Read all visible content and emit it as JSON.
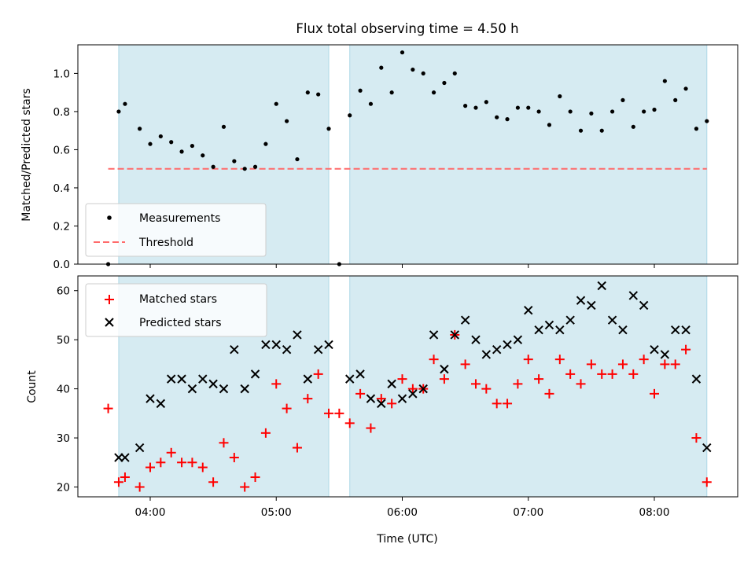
{
  "chart_data": [
    {
      "type": "scatter",
      "title": "Flux total observing time = 4.50 h",
      "xlabel": "",
      "ylabel": "Matched/Predicted stars",
      "ylim": [
        0,
        1.15
      ],
      "yticks": [
        "0.0",
        "0.2",
        "0.4",
        "0.6",
        "0.8",
        "1.0"
      ],
      "grid": false,
      "legend_position": "lower-left",
      "shaded_intervals_utc": [
        [
          "03:45",
          "05:25"
        ],
        [
          "05:35",
          "08:25"
        ]
      ],
      "shade_color": "#add8e6",
      "threshold": {
        "name": "Threshold",
        "value": 0.5,
        "x_range": [
          "03:40",
          "08:25"
        ],
        "color": "#ff6b6b",
        "style": "dashed"
      },
      "series": [
        {
          "name": "Measurements",
          "marker": "dot",
          "color": "#000000",
          "x": [
            "03:40",
            "03:45",
            "03:48",
            "03:55",
            "04:00",
            "04:05",
            "04:10",
            "04:15",
            "04:20",
            "04:25",
            "04:30",
            "04:35",
            "04:40",
            "04:45",
            "04:50",
            "04:55",
            "05:00",
            "05:05",
            "05:10",
            "05:15",
            "05:20",
            "05:25",
            "05:30",
            "05:35",
            "05:40",
            "05:45",
            "05:50",
            "05:55",
            "06:00",
            "06:05",
            "06:10",
            "06:15",
            "06:20",
            "06:25",
            "06:30",
            "06:35",
            "06:40",
            "06:45",
            "06:50",
            "06:55",
            "07:00",
            "07:05",
            "07:10",
            "07:15",
            "07:20",
            "07:25",
            "07:30",
            "07:35",
            "07:40",
            "07:45",
            "07:50",
            "07:55",
            "08:00",
            "08:05",
            "08:10",
            "08:15",
            "08:20",
            "08:25"
          ],
          "values": [
            0.0,
            0.8,
            0.84,
            0.71,
            0.63,
            0.67,
            0.64,
            0.59,
            0.62,
            0.57,
            0.51,
            0.72,
            0.54,
            0.5,
            0.51,
            0.63,
            0.84,
            0.75,
            0.55,
            0.9,
            0.89,
            0.71,
            0.0,
            0.78,
            0.91,
            0.84,
            1.03,
            0.9,
            1.11,
            1.02,
            1.0,
            0.9,
            0.95,
            1.0,
            0.83,
            0.82,
            0.85,
            0.77,
            0.76,
            0.82,
            0.82,
            0.8,
            0.73,
            0.88,
            0.8,
            0.7,
            0.79,
            0.7,
            0.8,
            0.86,
            0.72,
            0.8,
            0.81,
            0.96,
            0.86,
            0.92,
            0.71,
            0.75
          ]
        }
      ]
    },
    {
      "type": "scatter",
      "title": "",
      "xlabel": "Time (UTC)",
      "ylabel": "Count",
      "ylim": [
        18,
        63
      ],
      "yticks": [
        "20",
        "30",
        "40",
        "50",
        "60"
      ],
      "xticks": [
        "04:00",
        "05:00",
        "06:00",
        "07:00",
        "08:00"
      ],
      "grid": false,
      "legend_position": "top-left",
      "shaded_intervals_utc": [
        [
          "03:45",
          "05:25"
        ],
        [
          "05:35",
          "08:25"
        ]
      ],
      "series": [
        {
          "name": "Matched stars",
          "marker": "plus",
          "color": "#ff0000",
          "x": [
            "03:40",
            "03:45",
            "03:48",
            "03:55",
            "04:00",
            "04:05",
            "04:10",
            "04:15",
            "04:20",
            "04:25",
            "04:30",
            "04:35",
            "04:40",
            "04:45",
            "04:50",
            "04:55",
            "05:00",
            "05:05",
            "05:10",
            "05:15",
            "05:20",
            "05:25",
            "05:30",
            "05:35",
            "05:40",
            "05:45",
            "05:50",
            "05:55",
            "06:00",
            "06:05",
            "06:10",
            "06:15",
            "06:20",
            "06:25",
            "06:30",
            "06:35",
            "06:40",
            "06:45",
            "06:50",
            "06:55",
            "07:00",
            "07:05",
            "07:10",
            "07:15",
            "07:20",
            "07:25",
            "07:30",
            "07:35",
            "07:40",
            "07:45",
            "07:50",
            "07:55",
            "08:00",
            "08:05",
            "08:10",
            "08:15",
            "08:20",
            "08:25"
          ],
          "values": [
            36,
            21,
            22,
            20,
            24,
            25,
            27,
            25,
            25,
            24,
            21,
            29,
            26,
            20,
            22,
            31,
            41,
            36,
            28,
            38,
            43,
            35,
            35,
            33,
            39,
            32,
            38,
            37,
            42,
            40,
            40,
            46,
            42,
            51,
            45,
            41,
            40,
            37,
            37,
            41,
            46,
            42,
            39,
            46,
            43,
            41,
            45,
            43,
            43,
            45,
            43,
            46,
            39,
            45,
            45,
            48,
            30,
            21
          ]
        },
        {
          "name": "Predicted stars",
          "marker": "x",
          "color": "#000000",
          "x": [
            "03:45",
            "03:48",
            "03:55",
            "04:00",
            "04:05",
            "04:10",
            "04:15",
            "04:20",
            "04:25",
            "04:30",
            "04:35",
            "04:40",
            "04:45",
            "04:50",
            "04:55",
            "05:00",
            "05:05",
            "05:10",
            "05:15",
            "05:20",
            "05:25",
            "05:35",
            "05:40",
            "05:45",
            "05:50",
            "05:55",
            "06:00",
            "06:05",
            "06:10",
            "06:15",
            "06:20",
            "06:25",
            "06:30",
            "06:35",
            "06:40",
            "06:45",
            "06:50",
            "06:55",
            "07:00",
            "07:05",
            "07:10",
            "07:15",
            "07:20",
            "07:25",
            "07:30",
            "07:35",
            "07:40",
            "07:45",
            "07:50",
            "07:55",
            "08:00",
            "08:05",
            "08:10",
            "08:15",
            "08:20",
            "08:25"
          ],
          "values": [
            26,
            26,
            28,
            38,
            37,
            42,
            42,
            40,
            42,
            41,
            40,
            48,
            40,
            43,
            49,
            49,
            48,
            51,
            42,
            48,
            49,
            42,
            43,
            38,
            37,
            41,
            38,
            39,
            40,
            51,
            44,
            51,
            54,
            50,
            47,
            48,
            49,
            50,
            56,
            52,
            53,
            52,
            54,
            58,
            57,
            61,
            54,
            52,
            59,
            57,
            48,
            47,
            52,
            52,
            42,
            28
          ]
        }
      ]
    }
  ]
}
